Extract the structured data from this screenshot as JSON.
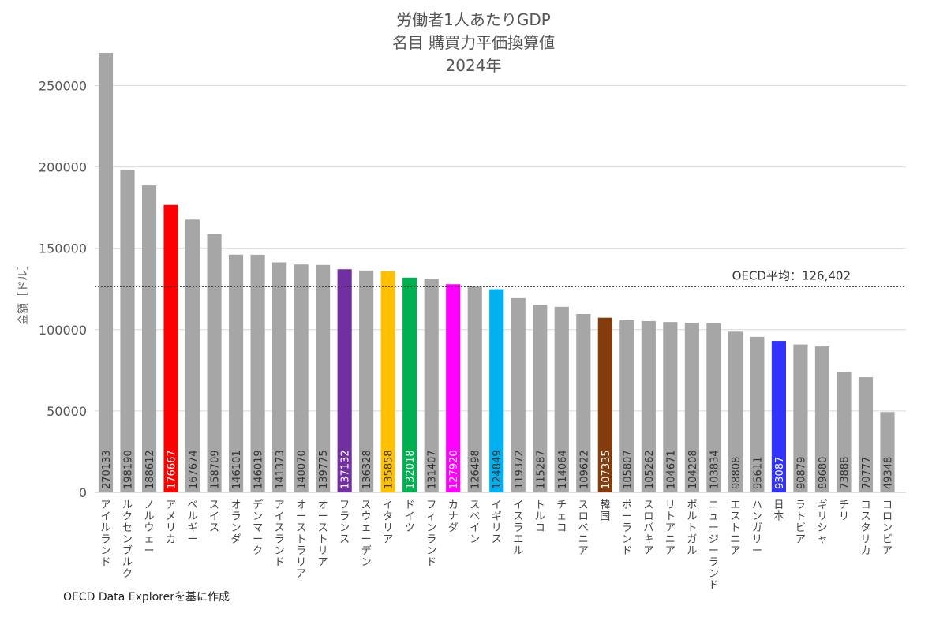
{
  "chart_data": {
    "type": "bar",
    "title_lines": [
      "労働者1人あたりGDP",
      "名目 購買力平価換算値",
      "2024年"
    ],
    "ylabel": "金額［ドル］",
    "ylim": [
      0,
      270133
    ],
    "yticks": [
      0,
      50000,
      100000,
      150000,
      200000,
      250000
    ],
    "grid": true,
    "reference_line": {
      "value": 126402,
      "label": "OECD平均：126,402"
    },
    "categories": [
      "アイルランド",
      "ルクセンブルク",
      "ノルウェー",
      "アメリカ",
      "ベルギー",
      "スイス",
      "オランダ",
      "デンマーク",
      "アイスランド",
      "オーストラリア",
      "オーストリア",
      "フランス",
      "スウェーデン",
      "イタリア",
      "ドイツ",
      "フィンランド",
      "カナダ",
      "スペイン",
      "イギリス",
      "イスラエル",
      "トルコ",
      "チェコ",
      "スロベニア",
      "韓国",
      "ポーランド",
      "スロバキア",
      "リトアニア",
      "ポルトガル",
      "ニュージーランド",
      "エストニア",
      "ハンガリー",
      "日本",
      "ラトビア",
      "ギリシャ",
      "チリ",
      "コスタリカ",
      "コロンビア"
    ],
    "values": [
      270133,
      198190,
      188612,
      176667,
      167674,
      158709,
      146101,
      146019,
      141373,
      140070,
      139775,
      137132,
      136328,
      135858,
      132018,
      131407,
      127920,
      126498,
      124849,
      119372,
      115287,
      114064,
      109622,
      107335,
      105807,
      105262,
      104671,
      104208,
      103834,
      98808,
      95611,
      93087,
      90879,
      89680,
      73888,
      70777,
      49348
    ],
    "colors": [
      "#a6a6a6",
      "#a6a6a6",
      "#a6a6a6",
      "#ff0000",
      "#a6a6a6",
      "#a6a6a6",
      "#a6a6a6",
      "#a6a6a6",
      "#a6a6a6",
      "#a6a6a6",
      "#a6a6a6",
      "#7030a0",
      "#a6a6a6",
      "#ffc000",
      "#00b050",
      "#a6a6a6",
      "#ff00ff",
      "#a6a6a6",
      "#00b0f0",
      "#a6a6a6",
      "#a6a6a6",
      "#a6a6a6",
      "#a6a6a6",
      "#843c0c",
      "#a6a6a6",
      "#a6a6a6",
      "#a6a6a6",
      "#a6a6a6",
      "#a6a6a6",
      "#a6a6a6",
      "#a6a6a6",
      "#3333ff",
      "#a6a6a6",
      "#a6a6a6",
      "#a6a6a6",
      "#a6a6a6",
      "#a6a6a6"
    ],
    "label_colors": [
      "#333333",
      "#333333",
      "#333333",
      "#ffffff",
      "#333333",
      "#333333",
      "#333333",
      "#333333",
      "#333333",
      "#333333",
      "#333333",
      "#ffffff",
      "#333333",
      "#333333",
      "#ffffff",
      "#333333",
      "#ffffff",
      "#333333",
      "#333333",
      "#333333",
      "#333333",
      "#333333",
      "#333333",
      "#ffffff",
      "#333333",
      "#333333",
      "#333333",
      "#333333",
      "#333333",
      "#333333",
      "#333333",
      "#ffffff",
      "#333333",
      "#333333",
      "#333333",
      "#333333",
      "#333333"
    ]
  },
  "source_note": "OECD Data Explorerを基に作成"
}
